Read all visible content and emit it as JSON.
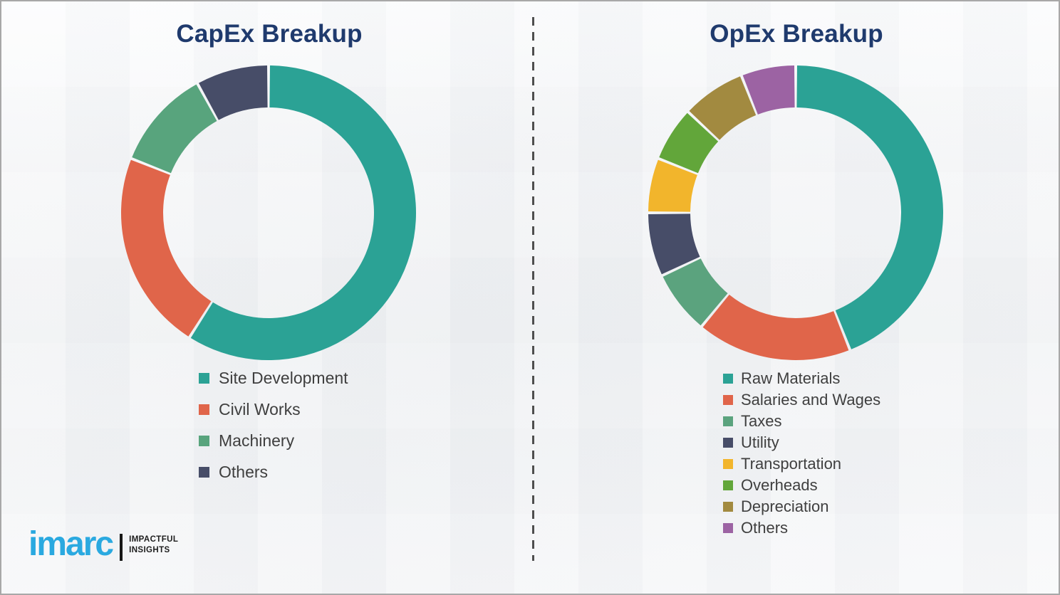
{
  "chart_data": [
    {
      "type": "pie",
      "variant": "donut",
      "title": "CapEx Breakup",
      "title_color": "#1f3a6d",
      "categories": [
        "Site Development",
        "Civil Works",
        "Machinery",
        "Others"
      ],
      "values": [
        59,
        22,
        11,
        8
      ],
      "unit": "% (estimated from arc angles)",
      "colors": [
        "#2ba295",
        "#e0654a",
        "#58a47d",
        "#474d68"
      ],
      "legend_position": "below-left",
      "legend_text_color": "#3f3f3f"
    },
    {
      "type": "pie",
      "variant": "donut",
      "title": "OpEx Breakup",
      "title_color": "#1f3a6d",
      "categories": [
        "Raw Materials",
        "Salaries and Wages",
        "Taxes",
        "Utility",
        "Transportation",
        "Overheads",
        "Depreciation",
        "Others"
      ],
      "values": [
        44,
        17,
        7,
        7,
        6,
        6,
        7,
        6
      ],
      "unit": "% (estimated from arc angles)",
      "colors": [
        "#2ba295",
        "#e0654a",
        "#5ba37e",
        "#474d68",
        "#f2b52c",
        "#62a63a",
        "#a28a40",
        "#9c63a3"
      ],
      "legend_position": "below-left",
      "legend_text_color": "#3f3f3f"
    }
  ],
  "divider": {
    "color": "#4e4e4e",
    "style": "dashed-vertical"
  },
  "logo": {
    "brand": "imarc",
    "brand_color": "#2aa9e0",
    "bar_color": "#161616",
    "tagline_line1": "IMPACTFUL",
    "tagline_line2": "INSIGHTS",
    "tagline_color": "#1d1d1d"
  }
}
